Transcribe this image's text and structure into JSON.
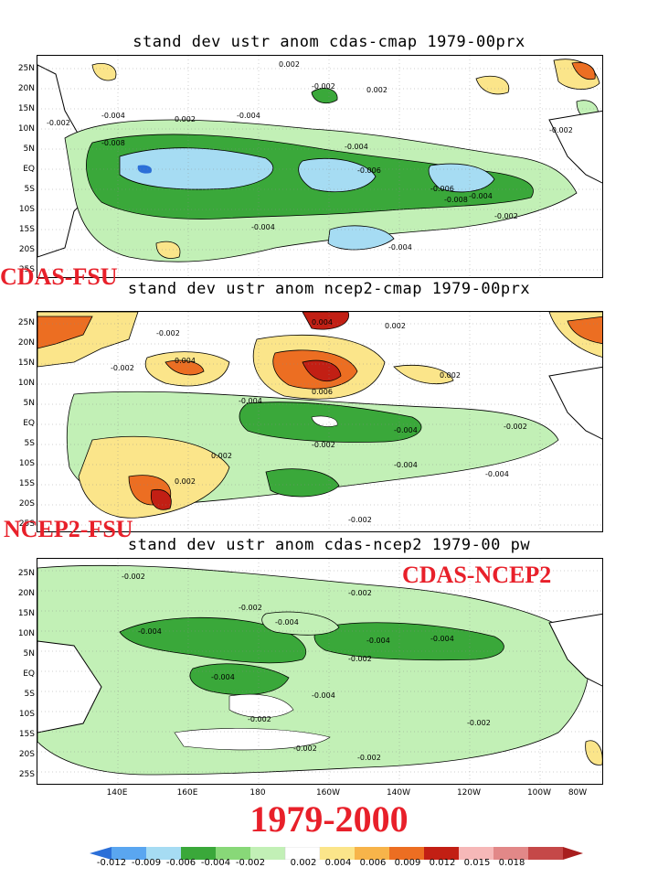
{
  "panels": [
    {
      "title": "stand dev ustr anom cdas-cmap 1979-00prx"
    },
    {
      "title": "stand dev ustr anom ncep2-cmap 1979-00prx"
    },
    {
      "title": "stand dev ustr anom cdas-ncep2 1979-00 pw"
    }
  ],
  "overlays": {
    "label1": "CDAS-FSU",
    "label2": "NCEP2-FSU",
    "label3": "CDAS-NCEP2",
    "period": "1979-2000"
  },
  "lat_labels": [
    "25N",
    "20N",
    "15N",
    "10N",
    "5N",
    "EQ",
    "5S",
    "10S",
    "15S",
    "20S",
    "25S"
  ],
  "lon_labels": [
    "140E",
    "160E",
    "180",
    "160W",
    "140W",
    "120W",
    "100W",
    "80W"
  ],
  "colorbar": {
    "labels": [
      "-0.012",
      "-0.009",
      "-0.006",
      "-0.004",
      "-0.002",
      "0.002",
      "0.004",
      "0.006",
      "0.009",
      "0.012",
      "0.015",
      "0.018"
    ],
    "colors": [
      "#2b6fd8",
      "#5aa6f0",
      "#a6dcf3",
      "#3aa83a",
      "#88d878",
      "#c2f0b6",
      "#ffffff",
      "#fbe58a",
      "#f7b44a",
      "#ec6e22",
      "#c21f14",
      "#f6b8b8",
      "#e28888",
      "#c54848",
      "#a81e1e"
    ]
  },
  "contour_labels": {
    "p1": [
      "-0.002",
      "-0.004",
      "0.002",
      "-0.006",
      "-0.008",
      "-0.002",
      "0.002",
      "-0.004",
      "-0.004",
      "-0.006",
      "-0.008",
      "-0.004",
      "-0.002",
      "0.002",
      "-0.002",
      "-0.004",
      "-0.004"
    ],
    "p2": [
      "0.004",
      "0.002",
      "-0.002",
      "0.004",
      "0.006",
      "-0.004",
      "0.002",
      "-0.002",
      "-0.004",
      "-0.002",
      "-0.002",
      "0.002",
      "-0.004",
      "-0.004",
      "0.002",
      "-0.002"
    ],
    "p3": [
      "-0.002",
      "-0.002",
      "-0.004",
      "-0.004",
      "-0.004",
      "-0.004",
      "-0.002",
      "-0.004",
      "-0.004",
      "-0.002",
      "-0.002",
      "-0.002",
      "-0.002",
      "-0.002"
    ]
  }
}
